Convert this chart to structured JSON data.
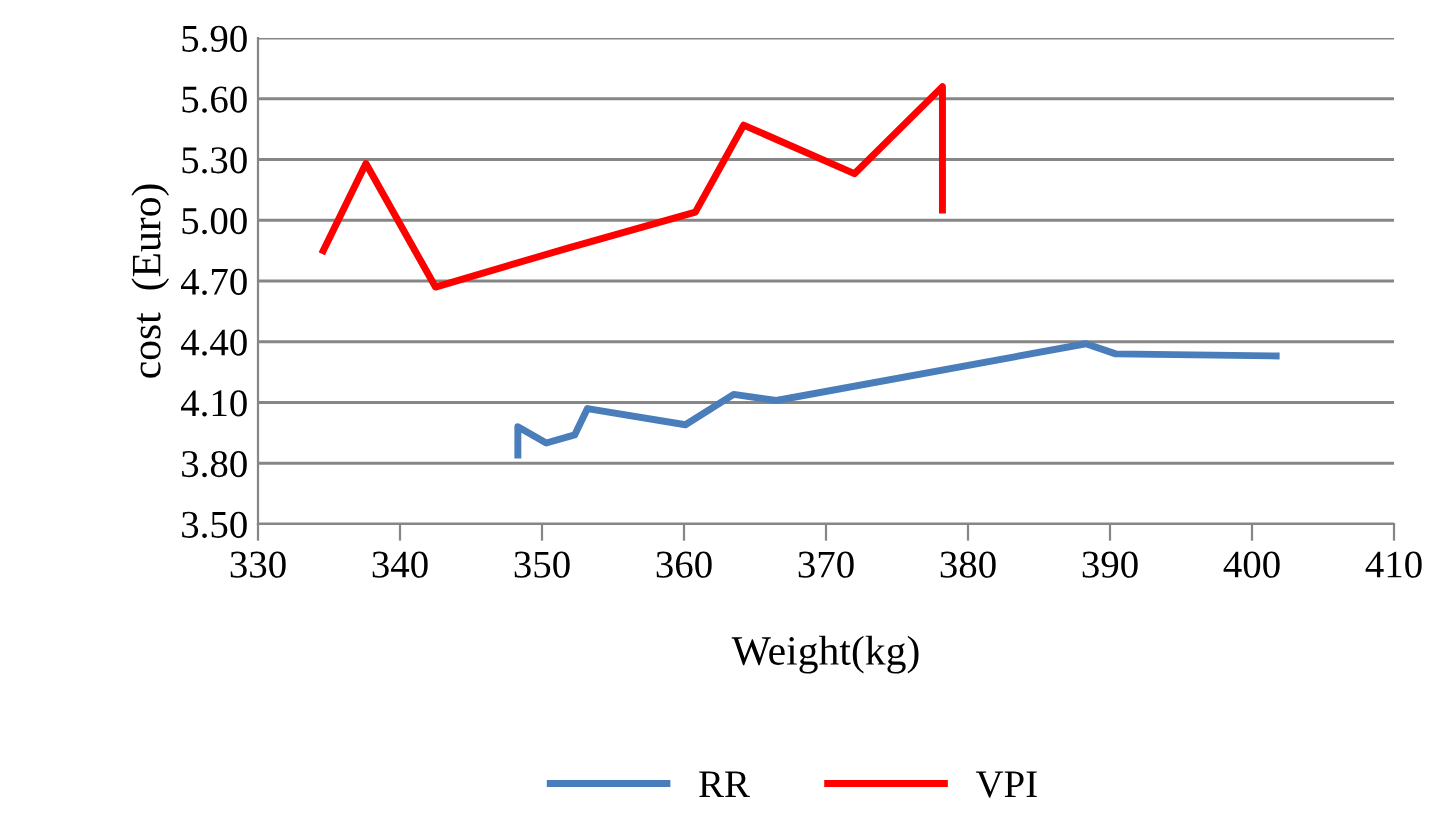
{
  "chart_data": {
    "type": "line",
    "xlabel": "Weight(kg)",
    "ylabel": "cost  (Euro)",
    "series": [
      {
        "name": "RR",
        "color": "#4a7ebb",
        "x": [
          348.3,
          348.3,
          350.3,
          352.3,
          353.2,
          360.1,
          363.5,
          366.5,
          388.3,
          390.4,
          401.7
        ],
        "values": [
          3.84,
          3.98,
          3.9,
          3.94,
          4.07,
          3.99,
          4.14,
          4.11,
          4.39,
          4.34,
          4.33
        ]
      },
      {
        "name": "VPI",
        "color": "#ff0000",
        "x": [
          334.6,
          337.6,
          342.5,
          351.7,
          360.8,
          364.2,
          372.0,
          378.2,
          378.2
        ],
        "values": [
          4.85,
          5.28,
          4.67,
          4.86,
          5.04,
          5.47,
          5.23,
          5.66,
          5.05
        ]
      }
    ],
    "xlim": [
      330,
      410
    ],
    "xticks": [
      330,
      340,
      350,
      360,
      370,
      380,
      390,
      400,
      410
    ],
    "ylim": [
      3.5,
      5.9
    ],
    "yticks": [
      {
        "value": 3.5,
        "label": "3.50"
      },
      {
        "value": 3.8,
        "label": "3.80"
      },
      {
        "value": 4.1,
        "label": "4.10"
      },
      {
        "value": 4.4,
        "label": "4.40"
      },
      {
        "value": 4.7,
        "label": "4.70"
      },
      {
        "value": 5.0,
        "label": "5.00"
      },
      {
        "value": 5.3,
        "label": "5.30"
      },
      {
        "value": 5.6,
        "label": "5.60"
      },
      {
        "value": 5.9,
        "label": "5.90"
      }
    ],
    "grid": "y",
    "legend": "bottom",
    "marker": "none",
    "line_style": "solid"
  }
}
